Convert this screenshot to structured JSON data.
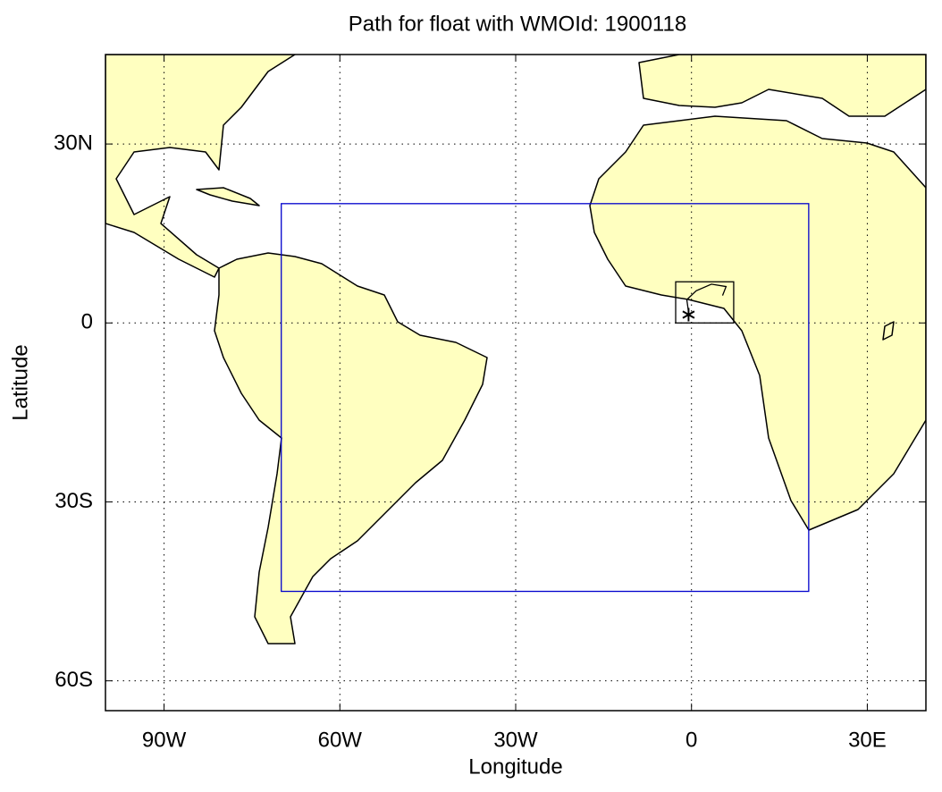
{
  "chart_data": {
    "type": "map",
    "title": "Path for float with WMOId: 1900118",
    "x_label": "Longitude",
    "y_label": "Latitude",
    "xlim": [
      -100,
      40
    ],
    "ylim": [
      -65,
      45
    ],
    "xticks": [
      {
        "value": -90,
        "label": "90W"
      },
      {
        "value": -60,
        "label": "60W"
      },
      {
        "value": -30,
        "label": "30W"
      },
      0,
      {
        "value": 30,
        "label": "30E"
      }
    ],
    "yticks": [
      {
        "value": -60,
        "label": "60S"
      },
      {
        "value": -30,
        "label": "30S"
      },
      0,
      {
        "value": 30,
        "label": "30N"
      }
    ],
    "grid": true,
    "regions": [
      {
        "color": "#0000cc",
        "lon": [
          -70,
          20
        ],
        "lat": [
          -45,
          20
        ]
      },
      {
        "color": "#000000",
        "lon": [
          -2.7,
          7.2
        ],
        "lat": [
          0,
          6.9
        ]
      }
    ],
    "float_path": {
      "color": "#000000",
      "x": [
        -0.5,
        -0.8,
        0.8,
        3.4,
        5.9,
        5.3
      ],
      "y": [
        1.8,
        3.9,
        5.4,
        6.5,
        6.1,
        4.6
      ]
    }
  }
}
